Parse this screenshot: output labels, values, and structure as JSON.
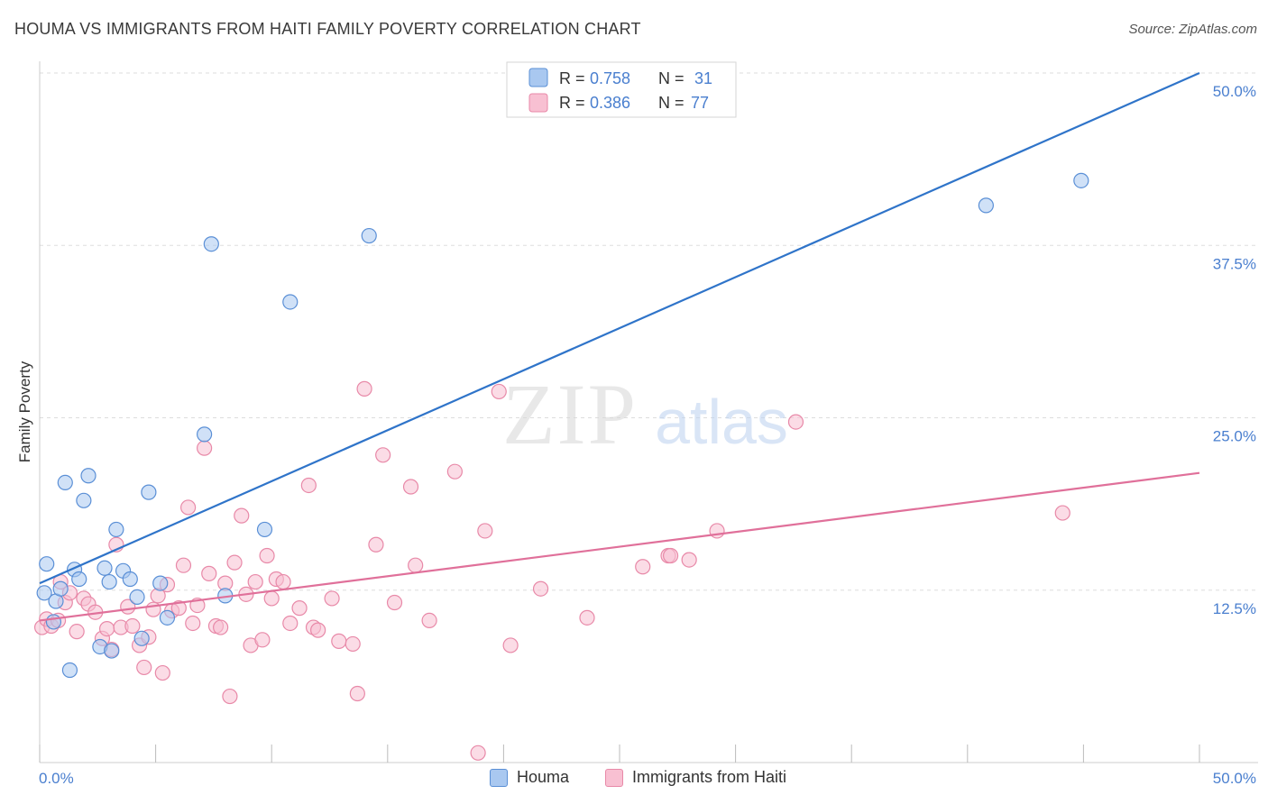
{
  "header": {
    "title": "HOUMA VS IMMIGRANTS FROM HAITI FAMILY POVERTY CORRELATION CHART",
    "source": "Source: ZipAtlas.com"
  },
  "watermark": {
    "zip": "ZIP",
    "atlas": "atlas"
  },
  "colors": {
    "houma_fill": "#a9c8f0",
    "houma_stroke": "#5a8fd6",
    "houma_line": "#2f74c9",
    "haiti_fill": "#f8c0d2",
    "haiti_stroke": "#e889a8",
    "haiti_line": "#e0709a",
    "axis_label": "#4a7fcf",
    "grid": "#dddddd"
  },
  "chart_data": {
    "type": "scatter",
    "title": "HOUMA VS IMMIGRANTS FROM HAITI FAMILY POVERTY CORRELATION CHART",
    "xlabel": "",
    "ylabel": "Family Poverty",
    "xlim": [
      0,
      50
    ],
    "ylim": [
      0,
      50
    ],
    "x_tick_labels": [
      "0.0%",
      "50.0%"
    ],
    "y_ticks": [
      12.5,
      25.0,
      37.5,
      50.0
    ],
    "y_tick_labels": [
      "12.5%",
      "25.0%",
      "37.5%",
      "50.0%"
    ],
    "legend": {
      "position": "top-center",
      "rows": [
        {
          "r_label": "R =",
          "r_value": "0.758",
          "n_label": "N =",
          "n_value": "31"
        },
        {
          "r_label": "R =",
          "r_value": "0.386",
          "n_label": "N =",
          "n_value": "77"
        }
      ]
    },
    "series": [
      {
        "name": "Houma",
        "r": 0.758,
        "n": 31,
        "trend": {
          "x": [
            0,
            50
          ],
          "y": [
            13.0,
            50.0
          ]
        },
        "points": [
          [
            0.2,
            12.3
          ],
          [
            0.3,
            14.4
          ],
          [
            0.6,
            10.2
          ],
          [
            0.7,
            11.7
          ],
          [
            0.9,
            12.6
          ],
          [
            1.1,
            20.3
          ],
          [
            1.3,
            6.7
          ],
          [
            1.5,
            14.0
          ],
          [
            1.7,
            13.3
          ],
          [
            1.9,
            19.0
          ],
          [
            2.1,
            20.8
          ],
          [
            2.6,
            8.4
          ],
          [
            2.8,
            14.1
          ],
          [
            3.1,
            8.1
          ],
          [
            3.0,
            13.1
          ],
          [
            3.3,
            16.9
          ],
          [
            3.6,
            13.9
          ],
          [
            3.9,
            13.3
          ],
          [
            4.2,
            12.0
          ],
          [
            4.4,
            9.0
          ],
          [
            4.7,
            19.6
          ],
          [
            5.2,
            13.0
          ],
          [
            5.5,
            10.5
          ],
          [
            7.1,
            23.8
          ],
          [
            7.4,
            37.6
          ],
          [
            8.0,
            12.1
          ],
          [
            9.7,
            16.9
          ],
          [
            10.8,
            33.4
          ],
          [
            14.2,
            38.2
          ],
          [
            40.8,
            40.4
          ],
          [
            44.9,
            42.2
          ]
        ]
      },
      {
        "name": "Immigrants from Haiti",
        "r": 0.386,
        "n": 77,
        "trend": {
          "x": [
            0,
            50
          ],
          "y": [
            10.3,
            21.0
          ]
        },
        "points": [
          [
            0.1,
            9.8
          ],
          [
            0.3,
            10.4
          ],
          [
            0.5,
            9.9
          ],
          [
            0.8,
            10.3
          ],
          [
            0.9,
            13.1
          ],
          [
            1.1,
            11.6
          ],
          [
            1.3,
            12.3
          ],
          [
            1.6,
            9.5
          ],
          [
            1.9,
            11.9
          ],
          [
            2.1,
            11.5
          ],
          [
            2.4,
            10.9
          ],
          [
            2.7,
            9.0
          ],
          [
            2.9,
            9.7
          ],
          [
            3.1,
            8.2
          ],
          [
            3.3,
            15.8
          ],
          [
            3.5,
            9.8
          ],
          [
            3.8,
            11.3
          ],
          [
            4.0,
            9.9
          ],
          [
            4.3,
            8.5
          ],
          [
            4.5,
            6.9
          ],
          [
            4.7,
            9.1
          ],
          [
            4.9,
            11.1
          ],
          [
            5.1,
            12.1
          ],
          [
            5.3,
            6.5
          ],
          [
            5.5,
            12.9
          ],
          [
            5.7,
            11.0
          ],
          [
            6.0,
            11.2
          ],
          [
            6.2,
            14.3
          ],
          [
            6.4,
            18.5
          ],
          [
            6.6,
            10.1
          ],
          [
            6.8,
            11.4
          ],
          [
            7.1,
            22.8
          ],
          [
            7.3,
            13.7
          ],
          [
            7.6,
            9.9
          ],
          [
            7.8,
            9.8
          ],
          [
            8.0,
            13.0
          ],
          [
            8.2,
            4.8
          ],
          [
            8.4,
            14.5
          ],
          [
            8.7,
            17.9
          ],
          [
            8.9,
            12.2
          ],
          [
            9.1,
            8.5
          ],
          [
            9.3,
            13.1
          ],
          [
            9.6,
            8.9
          ],
          [
            9.8,
            15.0
          ],
          [
            10.0,
            11.9
          ],
          [
            10.2,
            13.3
          ],
          [
            10.5,
            13.1
          ],
          [
            10.8,
            10.1
          ],
          [
            11.2,
            11.2
          ],
          [
            11.6,
            20.1
          ],
          [
            11.8,
            9.8
          ],
          [
            12.0,
            9.6
          ],
          [
            12.6,
            11.9
          ],
          [
            12.9,
            8.8
          ],
          [
            13.5,
            8.6
          ],
          [
            13.7,
            5.0
          ],
          [
            14.0,
            27.1
          ],
          [
            14.5,
            15.8
          ],
          [
            14.8,
            22.3
          ],
          [
            15.3,
            11.6
          ],
          [
            16.0,
            20.0
          ],
          [
            16.2,
            14.3
          ],
          [
            16.8,
            10.3
          ],
          [
            17.9,
            21.1
          ],
          [
            18.9,
            0.7
          ],
          [
            19.2,
            16.8
          ],
          [
            19.8,
            26.9
          ],
          [
            20.3,
            8.5
          ],
          [
            21.6,
            12.6
          ],
          [
            23.6,
            10.5
          ],
          [
            26.0,
            14.2
          ],
          [
            27.1,
            15.0
          ],
          [
            27.2,
            15.0
          ],
          [
            28.0,
            14.7
          ],
          [
            29.2,
            16.8
          ],
          [
            32.6,
            24.7
          ],
          [
            44.1,
            18.1
          ]
        ]
      }
    ]
  }
}
